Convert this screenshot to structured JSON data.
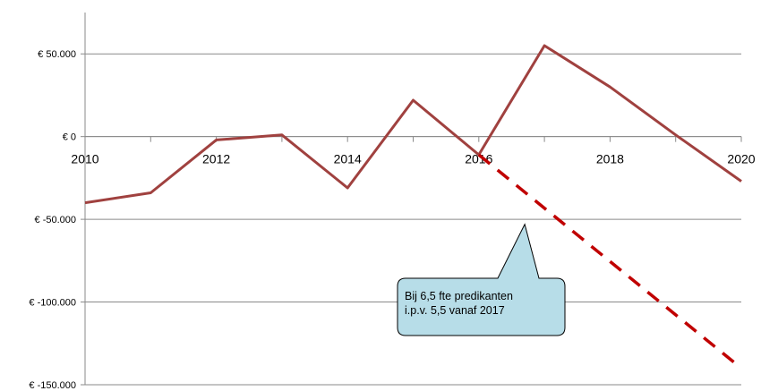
{
  "chart_data": {
    "type": "line",
    "title": "",
    "xlabel": "",
    "ylabel": "",
    "x": [
      2010,
      2011,
      2012,
      2013,
      2014,
      2015,
      2016,
      2017,
      2018,
      2019,
      2020
    ],
    "x_tick_labels": [
      "2010",
      "2012",
      "2014",
      "2016",
      "2018",
      "2020"
    ],
    "y_tick_values": [
      50000,
      0,
      -50000,
      -100000,
      -150000
    ],
    "y_tick_labels": [
      "€ 50.000",
      "€ 0",
      "€ -50.000",
      "€ -100.000",
      "€ -150.000"
    ],
    "ylim": [
      -150000,
      75000
    ],
    "xlim": [
      2010,
      2020
    ],
    "grid": "horizontal",
    "series": [
      {
        "style": "solid",
        "color": "#a0413f",
        "points": [
          {
            "x": 2010,
            "y": -40000
          },
          {
            "x": 2011,
            "y": -34000
          },
          {
            "x": 2012,
            "y": -2000
          },
          {
            "x": 2013,
            "y": 1000
          },
          {
            "x": 2014,
            "y": -31000
          },
          {
            "x": 2015,
            "y": 22000
          },
          {
            "x": 2016,
            "y": -11000
          },
          {
            "x": 2017,
            "y": 55000
          },
          {
            "x": 2018,
            "y": 30000
          },
          {
            "x": 2019,
            "y": 1000
          },
          {
            "x": 2020,
            "y": -27000
          }
        ]
      },
      {
        "style": "dashed",
        "color": "#c00000",
        "points": [
          {
            "x": 2016,
            "y": -11000
          },
          {
            "x": 2020,
            "y": -140000
          }
        ]
      }
    ],
    "annotations": [
      {
        "text_lines": [
          "Bij 6,5 fte predikanten",
          "i.p.v. 5,5 vanaf 2017"
        ],
        "pointer_x": 2016.7,
        "pointer_y": -53000
      }
    ]
  }
}
